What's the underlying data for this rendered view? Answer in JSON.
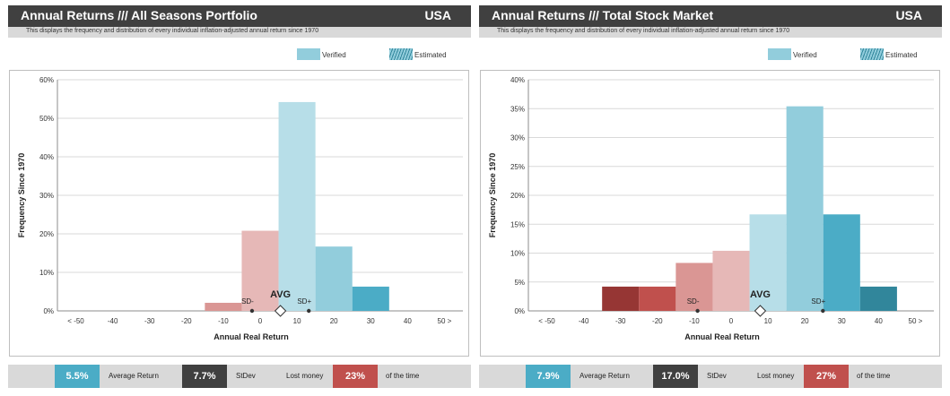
{
  "legend": {
    "verified": "Verified",
    "estimated": "Estimated"
  },
  "stat_labels": {
    "avg": "Average Return",
    "sd": "StDev",
    "lost": "Lost money",
    "time": "of the time"
  },
  "panels": [
    {
      "title": "Annual Returns /// All Seasons Portfolio",
      "country": "USA",
      "subtitle": "This displays the frequency and distribution of every individual inflation-adjusted annual return since 1970",
      "stats": {
        "avg": "5.5%",
        "sd": "7.7%",
        "lost": "23%"
      }
    },
    {
      "title": "Annual Returns /// Total Stock Market",
      "country": "USA",
      "subtitle": "This displays the frequency and distribution of every individual inflation-adjusted annual return since 1970",
      "stats": {
        "avg": "7.9%",
        "sd": "17.0%",
        "lost": "27%"
      }
    }
  ],
  "chart_data": [
    {
      "type": "bar",
      "categories": [
        "< -50",
        "-40",
        "-30",
        "-20",
        "-10",
        "0",
        "10",
        "20",
        "30",
        "40",
        "50 >"
      ],
      "values": [
        0,
        0,
        0,
        0,
        2.1,
        20.8,
        54.2,
        16.7,
        6.3,
        0,
        0
      ],
      "colors": [
        "#632523",
        "#963634",
        "#963634",
        "#c0504d",
        "#da9694",
        "#e6b8b7",
        "#b7dee8",
        "#92cddc",
        "#4bacc6",
        "#31869b",
        "#31869b"
      ],
      "ylim": [
        0,
        60
      ],
      "yticks": [
        0,
        10,
        20,
        30,
        40,
        50,
        60
      ],
      "ytick_labels": [
        "0%",
        "10%",
        "20%",
        "30%",
        "40%",
        "50%",
        "60%"
      ],
      "xlabel": "Annual Real Return",
      "ylabel": "Frequency Since 1970",
      "markers": {
        "avg": 5.5,
        "sd_minus": -2.2,
        "sd_plus": 13.2
      },
      "marker_labels": {
        "avg": "AVG",
        "sd_minus": "SD-",
        "sd_plus": "SD+"
      },
      "grid": true
    },
    {
      "type": "bar",
      "categories": [
        "< -50",
        "-40",
        "-30",
        "-20",
        "-10",
        "0",
        "10",
        "20",
        "30",
        "40",
        "50 >"
      ],
      "values": [
        0,
        0,
        4.2,
        4.2,
        8.3,
        10.4,
        16.7,
        35.4,
        16.7,
        4.2,
        0
      ],
      "colors": [
        "#632523",
        "#963634",
        "#963634",
        "#c0504d",
        "#da9694",
        "#e6b8b7",
        "#b7dee8",
        "#92cddc",
        "#4bacc6",
        "#31869b",
        "#31869b"
      ],
      "ylim": [
        0,
        40
      ],
      "yticks": [
        0,
        5,
        10,
        15,
        20,
        25,
        30,
        35,
        40
      ],
      "ytick_labels": [
        "0%",
        "5%",
        "10%",
        "15%",
        "20%",
        "25%",
        "30%",
        "35%",
        "40%"
      ],
      "xlabel": "Annual Real Return",
      "ylabel": "Frequency Since 1970",
      "markers": {
        "avg": 7.9,
        "sd_minus": -9.1,
        "sd_plus": 24.9
      },
      "marker_labels": {
        "avg": "AVG",
        "sd_minus": "SD-",
        "sd_plus": "SD+"
      },
      "grid": true
    }
  ]
}
